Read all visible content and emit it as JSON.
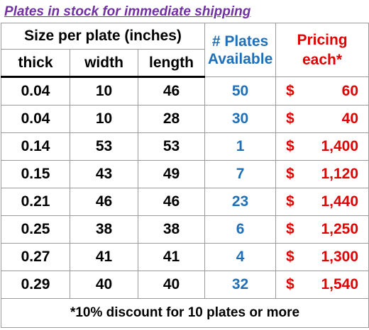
{
  "title": "Plates in stock for immediate shipping",
  "header": {
    "group": "Size per plate (inches)",
    "columns": [
      "thick",
      "width",
      "length"
    ],
    "plates": [
      "# Plates",
      "Available"
    ],
    "pricing": [
      "Pricing",
      "each*"
    ]
  },
  "rows": [
    [
      "0.04",
      "10",
      "46",
      "50",
      "$",
      "60"
    ],
    [
      "0.04",
      "10",
      "28",
      "30",
      "$",
      "40"
    ],
    [
      "0.14",
      "53",
      "53",
      "1",
      "$",
      "1,400"
    ],
    [
      "0.15",
      "43",
      "49",
      "7",
      "$",
      "1,120"
    ],
    [
      "0.21",
      "46",
      "46",
      "23",
      "$",
      "1,440"
    ],
    [
      "0.25",
      "38",
      "38",
      "6",
      "$",
      "1,250"
    ],
    [
      "0.27",
      "41",
      "41",
      "4",
      "$",
      "1,300"
    ],
    [
      "0.29",
      "40",
      "40",
      "32",
      "$",
      "1,540"
    ]
  ],
  "footer": "*10% discount for 10 plates or more"
}
